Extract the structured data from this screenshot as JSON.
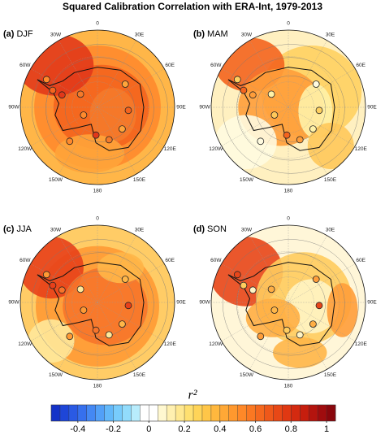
{
  "title": "Squared Calibration Correlation with ERA-Int, 1979-2013",
  "panels": [
    {
      "id": "(a)",
      "season": "DJF"
    },
    {
      "id": "(b)",
      "season": "MAM"
    },
    {
      "id": "(c)",
      "season": "JJA"
    },
    {
      "id": "(d)",
      "season": "SON"
    }
  ],
  "longitudes": [
    "0",
    "30E",
    "60E",
    "90E",
    "120E",
    "150E",
    "180",
    "150W",
    "120W",
    "90W",
    "60W",
    "30W"
  ],
  "colorbar": {
    "label": "r²",
    "lim": [
      -0.55,
      1.05
    ],
    "ticks": [
      -0.4,
      -0.2,
      0,
      0.2,
      0.4,
      0.6,
      0.8,
      1
    ],
    "colors": [
      "#1432c8",
      "#1e46d8",
      "#2a5ae4",
      "#3670ee",
      "#4488f4",
      "#52a0f8",
      "#62b8fa",
      "#78ccfc",
      "#92dcfc",
      "#b8ecfc",
      "#ffffff",
      "#ffffff",
      "#fff8d0",
      "#fff0b0",
      "#ffe890",
      "#ffe070",
      "#ffd458",
      "#ffc648",
      "#ffb83e",
      "#ffa836",
      "#ff982e",
      "#ff8828",
      "#fb7822",
      "#f5681e",
      "#ef581a",
      "#e84816",
      "#e03812",
      "#d42a10",
      "#c61e0e",
      "#b4140e",
      "#a00c0e",
      "#8a060c"
    ]
  }
}
